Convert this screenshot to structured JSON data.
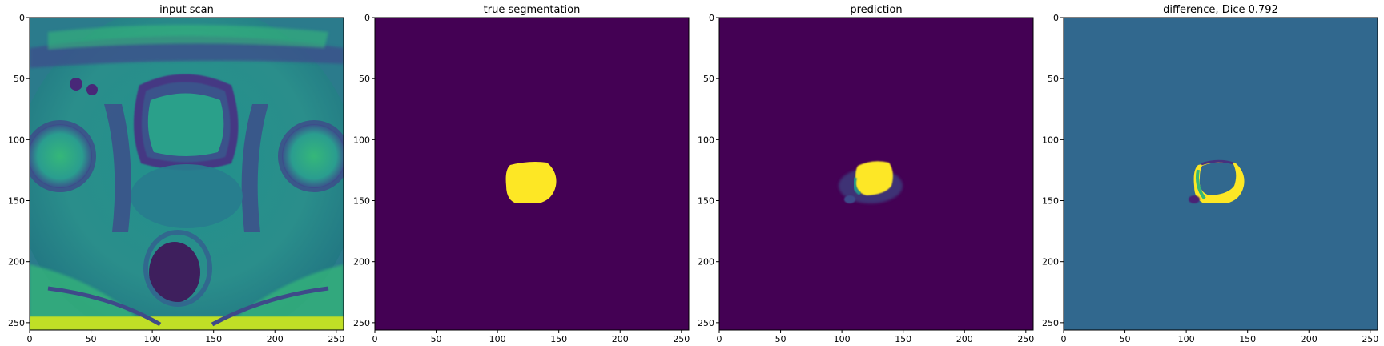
{
  "figure": {
    "panels": [
      {
        "title": "input scan"
      },
      {
        "title": "true segmentation"
      },
      {
        "title": "prediction"
      },
      {
        "title": "difference, Dice 0.792"
      }
    ]
  },
  "chart_data": [
    {
      "type": "heatmap",
      "title": "input scan",
      "colormap": "viridis",
      "content": "axial MRI slice of pelvis",
      "xlim": [
        0,
        256
      ],
      "ylim": [
        256,
        0
      ],
      "xticks": [
        0,
        50,
        100,
        150,
        200,
        250
      ],
      "yticks": [
        0,
        50,
        100,
        150,
        200,
        250
      ],
      "xlabel": "",
      "ylabel": ""
    },
    {
      "type": "heatmap",
      "title": "true segmentation",
      "colormap": "viridis",
      "background_color": "#440154",
      "mask_color": "#fde725",
      "mask_region": {
        "x": [
          108,
          150
        ],
        "y": [
          120,
          152
        ]
      },
      "xlim": [
        0,
        256
      ],
      "ylim": [
        256,
        0
      ],
      "xticks": [
        0,
        50,
        100,
        150,
        200,
        250
      ],
      "yticks": [
        0,
        50,
        100,
        150,
        200,
        250
      ],
      "xlabel": "",
      "ylabel": ""
    },
    {
      "type": "heatmap",
      "title": "prediction",
      "colormap": "viridis",
      "background_color": "#440154",
      "mask_color": "#fde725",
      "mask_region": {
        "x": [
          110,
          145
        ],
        "y": [
          118,
          148
        ]
      },
      "xlim": [
        0,
        256
      ],
      "ylim": [
        256,
        0
      ],
      "xticks": [
        0,
        50,
        100,
        150,
        200,
        250
      ],
      "yticks": [
        0,
        50,
        100,
        150,
        200,
        250
      ],
      "xlabel": "",
      "ylabel": ""
    },
    {
      "type": "heatmap",
      "title": "difference, Dice 0.792",
      "colormap": "viridis",
      "background_color": "#31688e",
      "dice": 0.792,
      "difference_region": {
        "x": [
          108,
          150
        ],
        "y": [
          118,
          152
        ]
      },
      "xlim": [
        0,
        256
      ],
      "ylim": [
        256,
        0
      ],
      "xticks": [
        0,
        50,
        100,
        150,
        200,
        250
      ],
      "yticks": [
        0,
        50,
        100,
        150,
        200,
        250
      ],
      "xlabel": "",
      "ylabel": ""
    }
  ]
}
